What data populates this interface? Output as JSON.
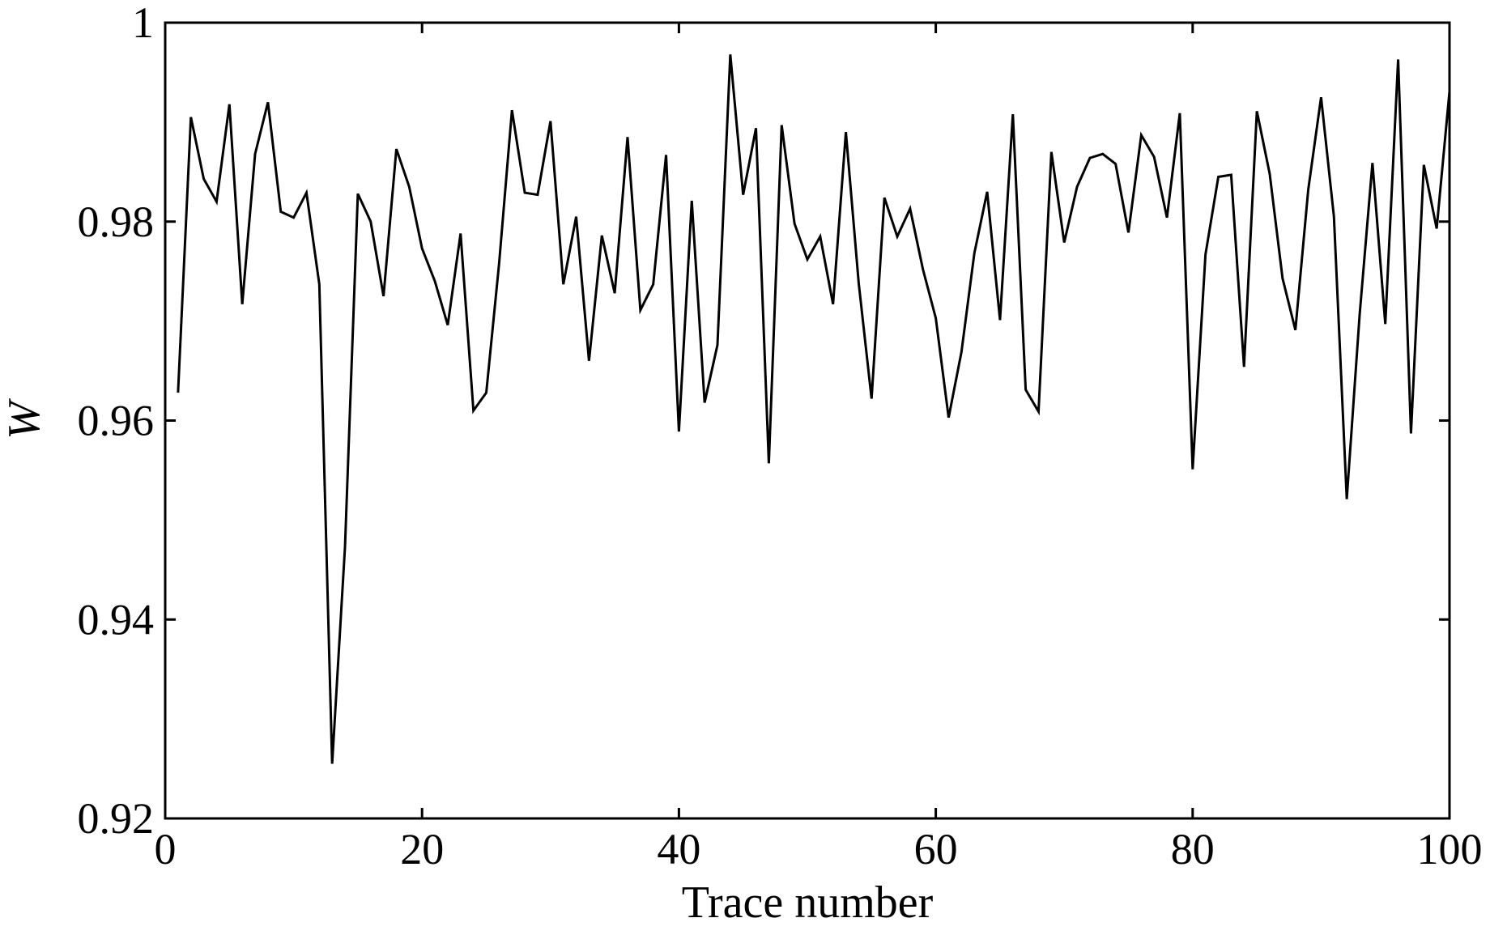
{
  "chart_data": {
    "type": "line",
    "title": "",
    "xlabel": "Trace number",
    "ylabel": "W",
    "xlim": [
      0,
      100
    ],
    "ylim": [
      0.92,
      1.0
    ],
    "xticks": [
      0,
      20,
      40,
      60,
      80,
      100
    ],
    "xtick_labels": [
      "0",
      "20",
      "40",
      "60",
      "80",
      "100"
    ],
    "yticks": [
      0.92,
      0.94,
      0.96,
      0.98,
      1.0
    ],
    "ytick_labels": [
      "0.92",
      "0.94",
      "0.96",
      "0.98",
      "1"
    ],
    "grid": false,
    "legend": "none",
    "line_color": "#000000",
    "series": [
      {
        "x": [
          1,
          2,
          3,
          4,
          5,
          6,
          7,
          8,
          9,
          10,
          11,
          12,
          13,
          14,
          15,
          16,
          17,
          18,
          19,
          20,
          21,
          22,
          23,
          24,
          25,
          26,
          27,
          28,
          29,
          30,
          31,
          32,
          33,
          34,
          35,
          36,
          37,
          38,
          39,
          40,
          41,
          42,
          43,
          44,
          45,
          46,
          47,
          48,
          49,
          50,
          51,
          52,
          53,
          54,
          55,
          56,
          57,
          58,
          59,
          60,
          61,
          62,
          63,
          64,
          65,
          66,
          67,
          68,
          69,
          70,
          71,
          72,
          73,
          74,
          75,
          76,
          77,
          78,
          79,
          80,
          81,
          82,
          83,
          84,
          85,
          86,
          87,
          88,
          89,
          90,
          91,
          92,
          93,
          94,
          95,
          96,
          97,
          98,
          99,
          100
        ],
        "values": [
          0.9628,
          0.9905,
          0.9843,
          0.982,
          0.9918,
          0.9717,
          0.9868,
          0.992,
          0.981,
          0.9804,
          0.9829,
          0.9737,
          0.9255,
          0.9473,
          0.9828,
          0.98,
          0.9725,
          0.9873,
          0.9835,
          0.9773,
          0.974,
          0.9696,
          0.9788,
          0.961,
          0.9628,
          0.9758,
          0.9912,
          0.9829,
          0.9827,
          0.9901,
          0.9737,
          0.9805,
          0.966,
          0.9786,
          0.9728,
          0.9885,
          0.9711,
          0.9737,
          0.9867,
          0.9589,
          0.9821,
          0.9618,
          0.9676,
          0.9968,
          0.9827,
          0.9894,
          0.9557,
          0.9897,
          0.9798,
          0.9762,
          0.9785,
          0.9717,
          0.989,
          0.9738,
          0.9622,
          0.9824,
          0.9785,
          0.9813,
          0.9752,
          0.9703,
          0.9603,
          0.9669,
          0.9768,
          0.983,
          0.9701,
          0.9908,
          0.9631,
          0.9609,
          0.987,
          0.9779,
          0.9835,
          0.9864,
          0.9868,
          0.9858,
          0.9789,
          0.9887,
          0.9865,
          0.9804,
          0.9909,
          0.9551,
          0.9767,
          0.9845,
          0.9847,
          0.9654,
          0.9911,
          0.9848,
          0.9743,
          0.9691,
          0.9832,
          0.9925,
          0.9805,
          0.9521,
          0.9706,
          0.9859,
          0.9697,
          0.9963,
          0.9587,
          0.9857,
          0.9793,
          0.9931
        ]
      }
    ]
  }
}
